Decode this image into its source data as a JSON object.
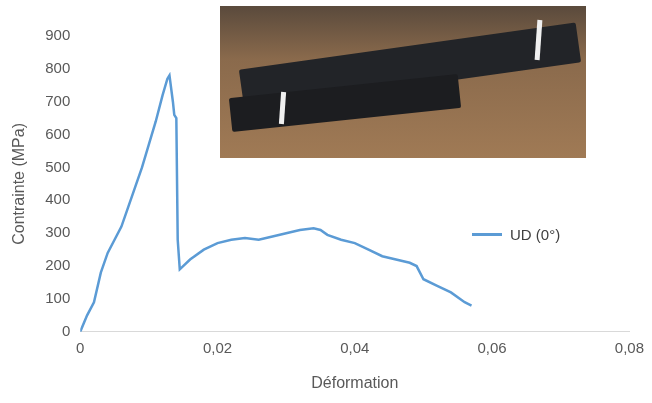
{
  "chart_data": {
    "type": "line",
    "x_label": "Déformation",
    "y_label": "Contrainte (MPa)",
    "x": [
      0,
      0.001,
      0.002,
      0.003,
      0.004,
      0.005,
      0.006,
      0.007,
      0.008,
      0.009,
      0.01,
      0.011,
      0.012,
      0.0127,
      0.013,
      0.0135,
      0.0137,
      0.014,
      0.0142,
      0.0145,
      0.016,
      0.018,
      0.02,
      0.022,
      0.024,
      0.026,
      0.028,
      0.03,
      0.032,
      0.034,
      0.035,
      0.036,
      0.038,
      0.04,
      0.042,
      0.044,
      0.046,
      0.048,
      0.049,
      0.05,
      0.052,
      0.054,
      0.056,
      0.057
    ],
    "series": [
      {
        "name": "UD (0°)",
        "color": "#5b9bd5",
        "line_style": "solid",
        "values": [
          0,
          50,
          90,
          180,
          240,
          280,
          320,
          380,
          440,
          500,
          570,
          640,
          720,
          770,
          780,
          700,
          660,
          650,
          280,
          190,
          220,
          250,
          270,
          280,
          285,
          280,
          290,
          300,
          310,
          315,
          310,
          295,
          280,
          270,
          250,
          230,
          220,
          210,
          200,
          160,
          140,
          120,
          90,
          80
        ]
      }
    ],
    "xlim": [
      0,
      0.08
    ],
    "xticks": [
      {
        "value": 0,
        "label": "0"
      },
      {
        "value": 0.02,
        "label": "0,02"
      },
      {
        "value": 0.04,
        "label": "0,04"
      },
      {
        "value": 0.06,
        "label": "0,06"
      },
      {
        "value": 0.08,
        "label": "0,08"
      }
    ],
    "ylim": [
      0,
      900
    ],
    "yticks": [
      0,
      100,
      200,
      300,
      400,
      500,
      600,
      700,
      800,
      900
    ],
    "grid": false,
    "legend": "right"
  }
}
